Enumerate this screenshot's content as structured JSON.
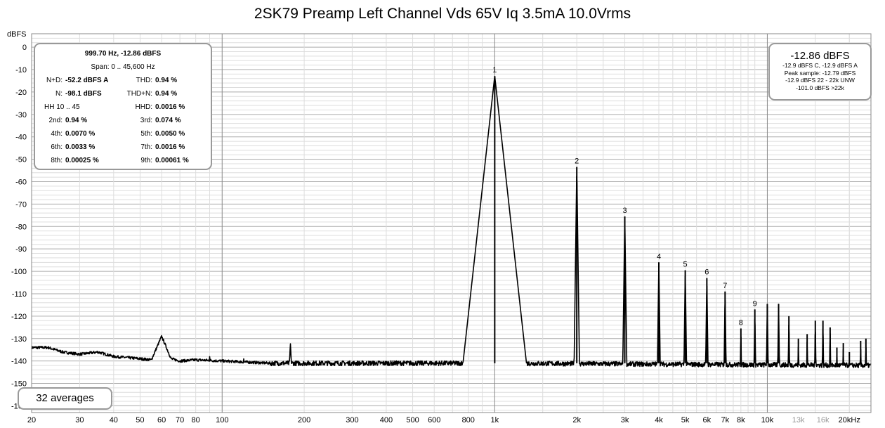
{
  "chart_data": {
    "type": "line",
    "title": "2SK79 Preamp Left Channel Vds 65V Iq 3.5mA 10.0Vrms",
    "ylabel": "dBFS",
    "xlabel": "",
    "x_scale": "log",
    "xlim": [
      20,
      24000
    ],
    "ylim": [
      -163,
      6
    ],
    "grid": true,
    "y_ticks": [
      0,
      -10,
      -20,
      -30,
      -40,
      -50,
      -60,
      -70,
      -80,
      -90,
      -100,
      -110,
      -120,
      -130,
      -140,
      -150,
      -160
    ],
    "x_ticks": [
      {
        "v": 20,
        "label": "20"
      },
      {
        "v": 30,
        "label": "30"
      },
      {
        "v": 40,
        "label": "40"
      },
      {
        "v": 50,
        "label": "50"
      },
      {
        "v": 60,
        "label": "60"
      },
      {
        "v": 70,
        "label": "70"
      },
      {
        "v": 80,
        "label": "80"
      },
      {
        "v": 100,
        "label": "100"
      },
      {
        "v": 200,
        "label": "200"
      },
      {
        "v": 300,
        "label": "300"
      },
      {
        "v": 400,
        "label": "400"
      },
      {
        "v": 500,
        "label": "500"
      },
      {
        "v": 600,
        "label": "600"
      },
      {
        "v": 800,
        "label": "800"
      },
      {
        "v": 1000,
        "label": "1k"
      },
      {
        "v": 2000,
        "label": "2k"
      },
      {
        "v": 3000,
        "label": "3k"
      },
      {
        "v": 4000,
        "label": "4k"
      },
      {
        "v": 5000,
        "label": "5k"
      },
      {
        "v": 6000,
        "label": "6k"
      },
      {
        "v": 7000,
        "label": "7k"
      },
      {
        "v": 8000,
        "label": "8k"
      },
      {
        "v": 10000,
        "label": "10k"
      },
      {
        "v": 13000,
        "label": "13k",
        "muted": true
      },
      {
        "v": 16000,
        "label": "16k",
        "muted": true
      },
      {
        "v": 20000,
        "label": "20kHz"
      }
    ],
    "spectrum": {
      "noise_floor": -141,
      "low_freq_points": [
        [
          20,
          -134
        ],
        [
          23,
          -134
        ],
        [
          26,
          -136
        ],
        [
          30,
          -137
        ],
        [
          35,
          -136
        ],
        [
          40,
          -138
        ],
        [
          45,
          -138.5
        ],
        [
          50,
          -139
        ],
        [
          55,
          -139.5
        ],
        [
          60,
          -129
        ],
        [
          65,
          -139
        ],
        [
          70,
          -140
        ],
        [
          80,
          -139.5
        ],
        [
          100,
          -140
        ],
        [
          150,
          -141
        ],
        [
          200,
          -141
        ],
        [
          1000,
          -141
        ],
        [
          24000,
          -142
        ]
      ],
      "spurs": [
        [
          60,
          -129
        ],
        [
          178,
          -132
        ],
        [
          90,
          -138
        ],
        [
          120,
          -139
        ]
      ]
    },
    "peaks": [
      {
        "label": "1",
        "f": 1000,
        "db": -12.86
      },
      {
        "label": "2",
        "f": 2000,
        "db": -53.4
      },
      {
        "label": "3",
        "f": 3000,
        "db": -75.5
      },
      {
        "label": "4",
        "f": 4000,
        "db": -96
      },
      {
        "label": "5",
        "f": 5000,
        "db": -99.5
      },
      {
        "label": "6",
        "f": 6000,
        "db": -103
      },
      {
        "label": "7",
        "f": 7000,
        "db": -109
      },
      {
        "label": "8",
        "f": 8000,
        "db": -125.5
      },
      {
        "label": "9",
        "f": 9000,
        "db": -117
      }
    ],
    "unlabeled_peaks": [
      {
        "f": 10000,
        "db": -114.5
      },
      {
        "f": 11000,
        "db": -114.5
      },
      {
        "f": 12000,
        "db": -120
      },
      {
        "f": 13000,
        "db": -130
      },
      {
        "f": 14000,
        "db": -128
      },
      {
        "f": 15000,
        "db": -122
      },
      {
        "f": 16000,
        "db": -122
      },
      {
        "f": 17000,
        "db": -125
      },
      {
        "f": 18000,
        "db": -134
      },
      {
        "f": 19000,
        "db": -132
      },
      {
        "f": 20000,
        "db": -136
      },
      {
        "f": 22000,
        "db": -131
      },
      {
        "f": 23000,
        "db": -130
      }
    ]
  },
  "stats": {
    "header": "999.70 Hz, -12.86 dBFS",
    "span": "Span: 0 .. 45,600 Hz",
    "rows": [
      {
        "l_label": "N+D:",
        "l_val": "-52.2 dBFS A",
        "r_label": "THD:",
        "r_val": "0.94 %"
      },
      {
        "l_label": "N:",
        "l_val": "-98.1 dBFS",
        "r_label": "THD+N:",
        "r_val": "0.94 %"
      },
      {
        "l_label": "HH 10 .. 45",
        "l_val": "",
        "r_label": "HHD:",
        "r_val": "0.0016 %"
      },
      {
        "l_label": "2nd:",
        "l_val": "0.94 %",
        "r_label": "3rd:",
        "r_val": "0.074 %"
      },
      {
        "l_label": "4th:",
        "l_val": "0.0070 %",
        "r_label": "5th:",
        "r_val": "0.0050 %"
      },
      {
        "l_label": "6th:",
        "l_val": "0.0033 %",
        "r_label": "7th:",
        "r_val": "0.0016 %"
      },
      {
        "l_label": "8th:",
        "l_val": "0.00025 %",
        "r_label": "9th:",
        "r_val": "0.00061 %"
      }
    ]
  },
  "level": {
    "main": "-12.86 dBFS",
    "lines": [
      "-12.9 dBFS C, -12.9 dBFS A",
      "Peak sample: -12.79 dBFS",
      "-12.9 dBFS 22 - 22k UNW",
      "-101.0 dBFS >22k"
    ]
  },
  "averages": "32 averages",
  "colors": {
    "trace": "#000000",
    "grid_major": "#aaaaaa",
    "grid_minor": "#dddddd",
    "panel_border": "#999999",
    "muted_label": "#999999"
  }
}
